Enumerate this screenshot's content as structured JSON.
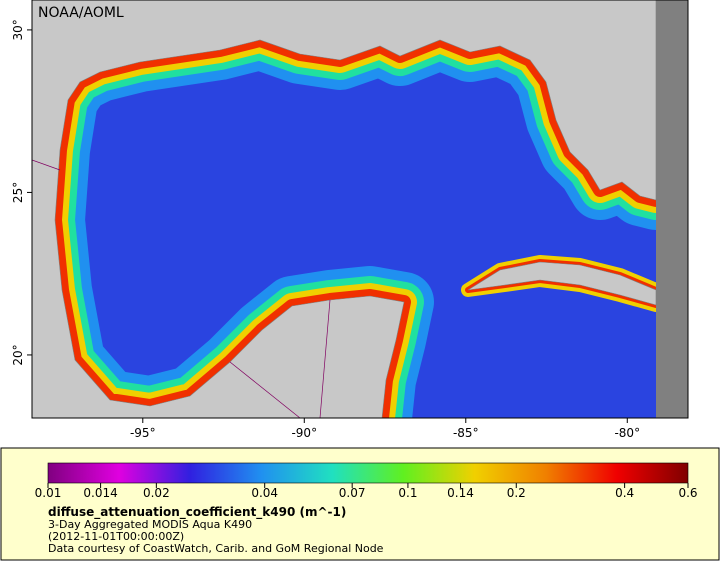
{
  "map": {
    "watermark": "NOAA/AOML",
    "xlim": [
      -98.43,
      -78.12
    ],
    "ylim": [
      18.06,
      30.92
    ],
    "xticks": [
      {
        "value": -95,
        "label": "-95°"
      },
      {
        "value": -90,
        "label": "-90°"
      },
      {
        "value": -85,
        "label": "-85°"
      },
      {
        "value": -80,
        "label": "-80°"
      }
    ],
    "yticks": [
      {
        "value": 20,
        "label": "20°"
      },
      {
        "value": 25,
        "label": "25°"
      },
      {
        "value": 30,
        "label": "30°"
      }
    ]
  },
  "colorbar": {
    "scale": "log",
    "lim": [
      0.01,
      0.6
    ],
    "ticks": [
      0.01,
      0.014,
      0.02,
      0.04,
      0.07,
      0.1,
      0.14,
      0.2,
      0.4,
      0.6
    ],
    "colors": [
      "#800080",
      "#e000e0",
      "#3020e0",
      "#2090f0",
      "#20e0c0",
      "#60f020",
      "#f0d000",
      "#f08000",
      "#f00000",
      "#800000"
    ]
  },
  "caption": {
    "title": "diffuse_attenuation_coefficient_k490 (m^-1)",
    "lines": [
      "3-Day Aggregated MODIS Aqua K490",
      "(2012-11-01T00:00:00Z)",
      "Data courtesy of CoastWatch, Carib. and GoM Regional Node"
    ]
  }
}
